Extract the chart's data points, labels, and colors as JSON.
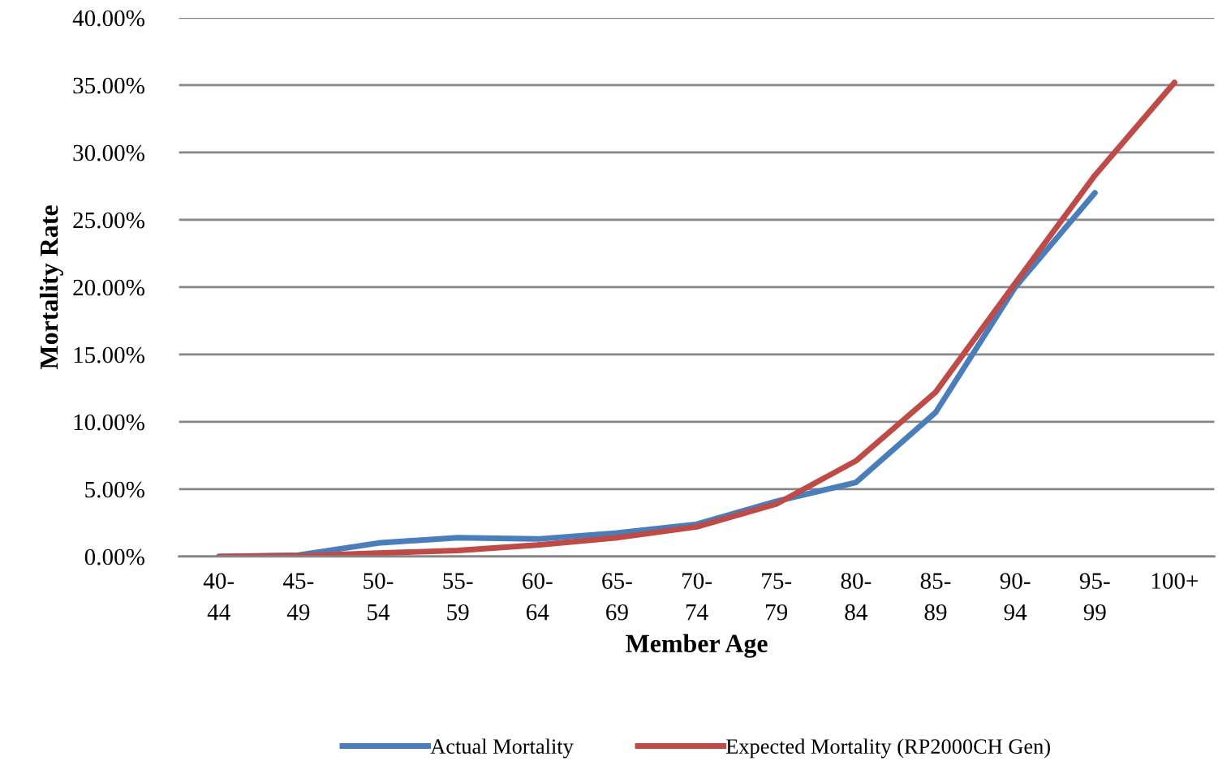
{
  "chart_data": {
    "type": "line",
    "xlabel": "Member Age",
    "ylabel": "Mortality Rate",
    "categories": [
      "40-44",
      "45-49",
      "50-54",
      "55-59",
      "60-64",
      "65-69",
      "70-74",
      "75-79",
      "80-84",
      "85-89",
      "90-94",
      "95-99",
      "100+"
    ],
    "series": [
      {
        "name": "Actual Mortality",
        "color": "#4a7ebb",
        "values": [
          0,
          0.1,
          1.0,
          1.4,
          1.3,
          1.75,
          2.4,
          4.1,
          5.5,
          10.7,
          20.0,
          27.0,
          null
        ]
      },
      {
        "name": "Expected Mortality (RP2000CH Gen)",
        "color": "#be4b48",
        "values": [
          0,
          0.05,
          0.25,
          0.45,
          0.85,
          1.4,
          2.2,
          3.9,
          7.1,
          12.2,
          20.3,
          28.3,
          35.2
        ]
      }
    ],
    "ylim": [
      0,
      40
    ],
    "yticks": [
      {
        "value": 0,
        "label": "0.00%"
      },
      {
        "value": 5,
        "label": "5.00%"
      },
      {
        "value": 10,
        "label": "10.00%"
      },
      {
        "value": 15,
        "label": "15.00%"
      },
      {
        "value": 20,
        "label": "20.00%"
      },
      {
        "value": 25,
        "label": "25.00%"
      },
      {
        "value": 30,
        "label": "30.00%"
      },
      {
        "value": 35,
        "label": "35.00%"
      },
      {
        "value": 40,
        "label": "40.00%"
      }
    ],
    "grid": "y",
    "legend": "bottom",
    "marker": "none",
    "line_style": "solid"
  }
}
